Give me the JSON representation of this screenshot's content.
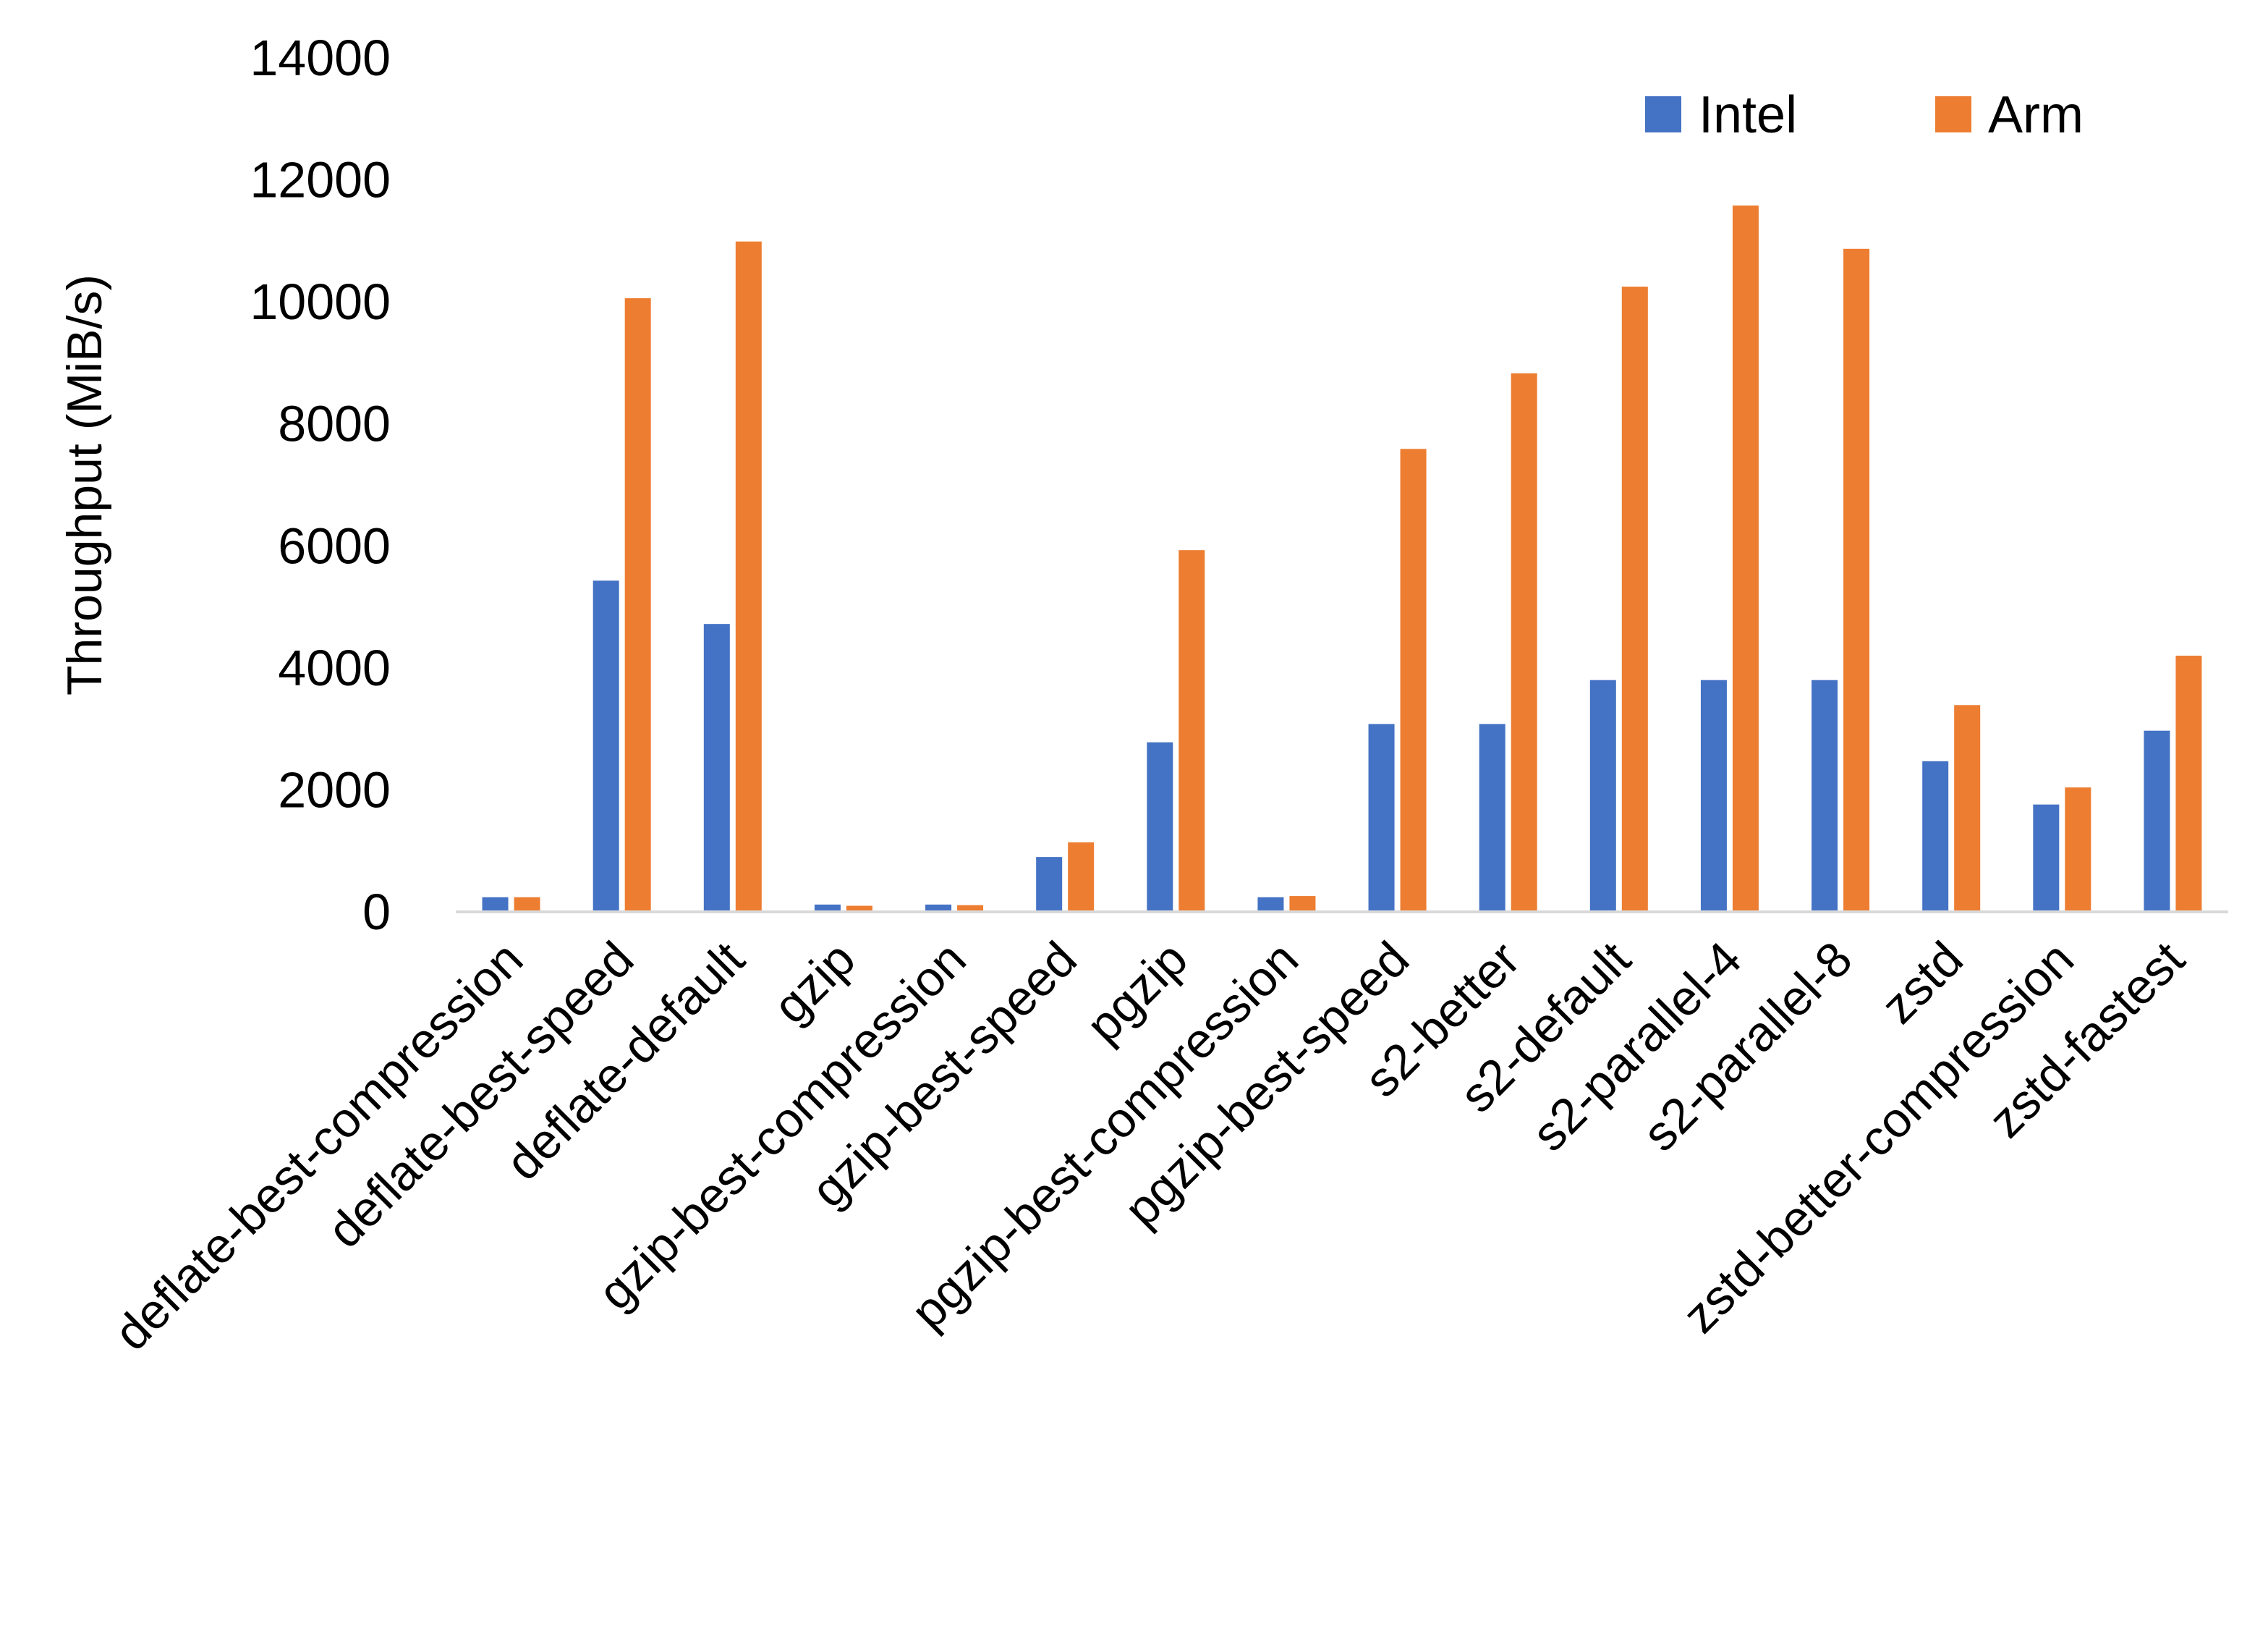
{
  "chart_data": {
    "type": "bar",
    "title": "",
    "xlabel": "",
    "ylabel": "Throughput (MiB/s)",
    "ylim": [
      0,
      14000
    ],
    "yticks": [
      "0",
      "2000",
      "4000",
      "6000",
      "8000",
      "10000",
      "12000",
      "14000"
    ],
    "grid": false,
    "legend_position": "top-right",
    "categories": [
      "deflate-best-compression",
      "deflate-best-speed",
      "deflate-default",
      "gzip",
      "gzip-best-compression",
      "gzip-best-speed",
      "pgzip",
      "pgzip-best-compression",
      "pgzip-best-speed",
      "s2-better",
      "s2-default",
      "s2-parallel-4",
      "s2-parallel-8",
      "zstd",
      "zstd-better-compression",
      "zstd-fastest"
    ],
    "series": [
      {
        "name": "Intel",
        "color": "#4472C4",
        "values": [
          240,
          5430,
          4720,
          120,
          120,
          900,
          2780,
          240,
          3080,
          3080,
          3800,
          3800,
          3800,
          2470,
          1760,
          2970
        ]
      },
      {
        "name": "Arm",
        "color": "#ED7D31",
        "values": [
          240,
          10060,
          10990,
          100,
          110,
          1140,
          5930,
          260,
          7590,
          8830,
          10250,
          11580,
          10870,
          3390,
          2040,
          4200
        ]
      }
    ]
  }
}
